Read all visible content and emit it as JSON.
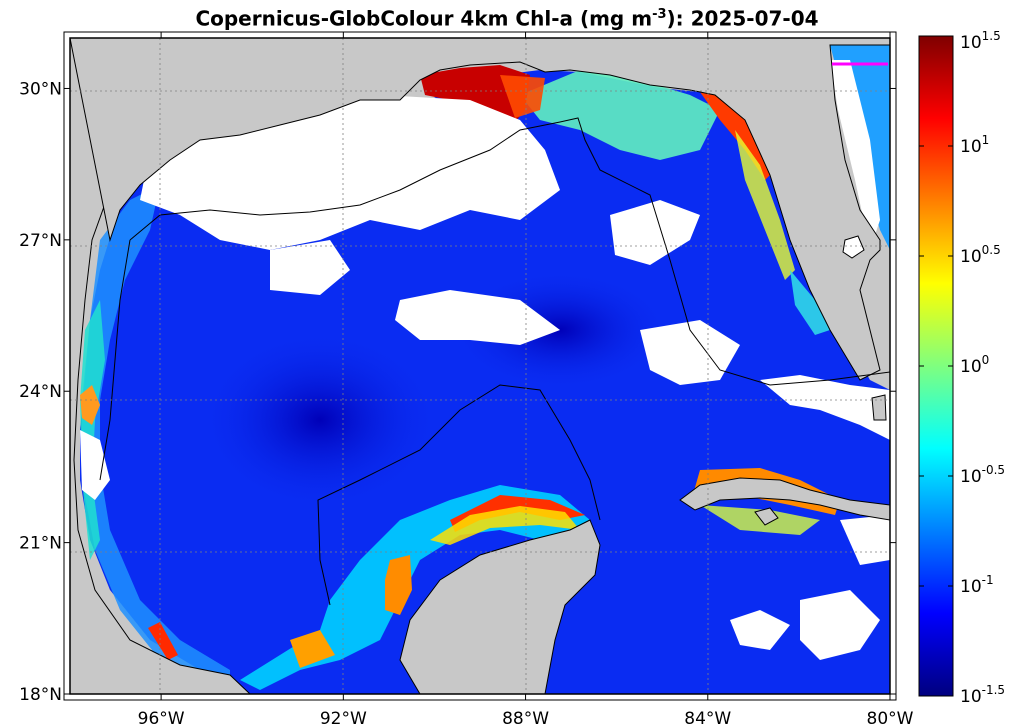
{
  "title": {
    "prefix": "Copernicus-GlobColour 4km Chl-a (mg m",
    "superscript": "-3",
    "suffix": "): 2025-07-04"
  },
  "map": {
    "lon_range": [
      -98,
      -80
    ],
    "lat_range": [
      18,
      31
    ],
    "land_color": "#c8c8c8",
    "no_data_color": "#ffffff",
    "coastline_color": "#000000",
    "grid": true,
    "x_ticks": [
      {
        "lon": -96,
        "label": "96°W"
      },
      {
        "lon": -92,
        "label": "92°W"
      },
      {
        "lon": -88,
        "label": "88°W"
      },
      {
        "lon": -84,
        "label": "84°W"
      },
      {
        "lon": -80,
        "label": "80°W"
      }
    ],
    "y_ticks": [
      {
        "lat": 18,
        "label": "18°N"
      },
      {
        "lat": 21,
        "label": "21°N"
      },
      {
        "lat": 24,
        "label": "24°N"
      },
      {
        "lat": 27,
        "label": "27°N"
      },
      {
        "lat": 30,
        "label": "30°N"
      }
    ],
    "marker_color": "#ff00ff"
  },
  "colorbar": {
    "colormap": "jet",
    "scale": "log",
    "range_log10": [
      -1.5,
      1.5
    ],
    "ticks": [
      {
        "base": "10",
        "exp": "1.5",
        "log10": 1.5
      },
      {
        "base": "10",
        "exp": "1",
        "log10": 1.0
      },
      {
        "base": "10",
        "exp": "0.5",
        "log10": 0.5
      },
      {
        "base": "10",
        "exp": "0",
        "log10": 0.0
      },
      {
        "base": "10",
        "exp": "-0.5",
        "log10": -0.5
      },
      {
        "base": "10",
        "exp": "-1",
        "log10": -1.0
      },
      {
        "base": "10",
        "exp": "-1.5",
        "log10": -1.5
      }
    ],
    "jet_stops": [
      "#00007f",
      "#0000ff",
      "#007fff",
      "#00ffff",
      "#7fff7f",
      "#ffff00",
      "#ff7f00",
      "#ff0000",
      "#7f0000"
    ]
  }
}
